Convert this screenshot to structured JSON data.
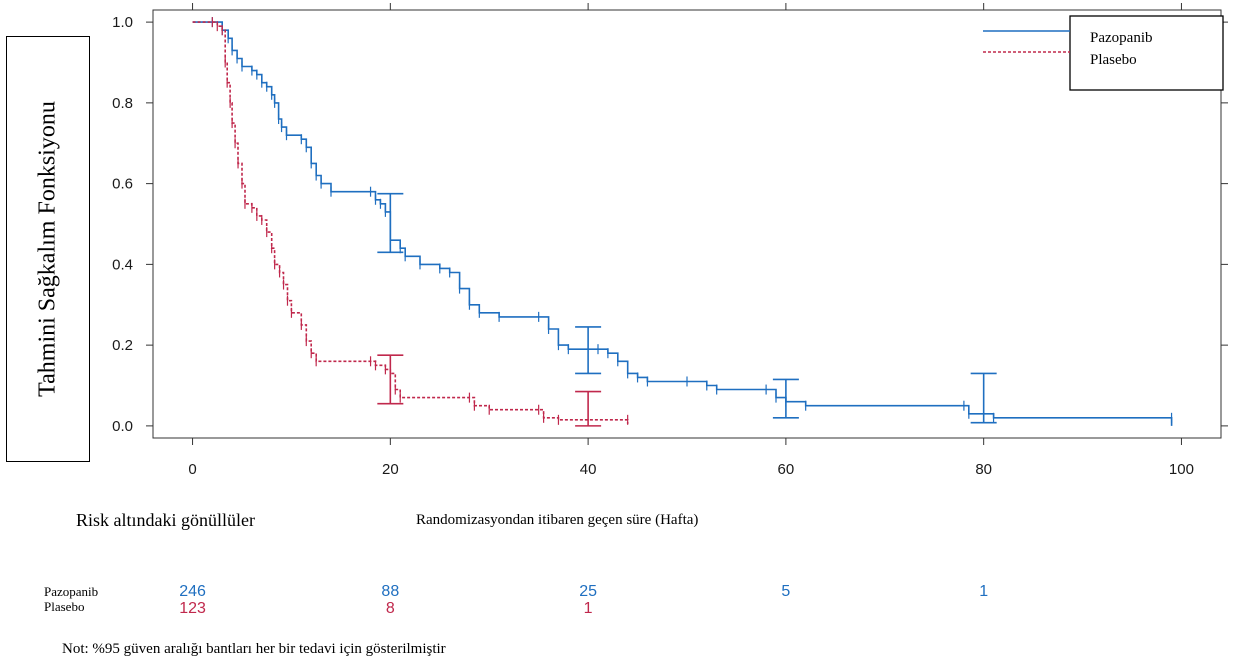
{
  "chart_data": {
    "type": "line",
    "title": "",
    "xlabel": "Randomizasyondan itibaren geçen süre (Hafta)",
    "ylabel": "Tahmini Sağkalım Fonksiyonu",
    "xlim": [
      -4,
      104
    ],
    "ylim": [
      -0.03,
      1.03
    ],
    "x_ticks": [
      0,
      20,
      40,
      60,
      80,
      100
    ],
    "y_ticks": [
      "0.0",
      "0.2",
      "0.4",
      "0.6",
      "0.8",
      "1.0"
    ],
    "legend_position": "top-right",
    "series": [
      {
        "name": "Pazopanib",
        "color": "#1f6fc0",
        "dash": "solid",
        "points": [
          [
            0,
            1.0
          ],
          [
            2,
            1.0
          ],
          [
            3,
            0.98
          ],
          [
            3.6,
            0.96
          ],
          [
            4,
            0.93
          ],
          [
            4.5,
            0.91
          ],
          [
            5,
            0.89
          ],
          [
            6,
            0.88
          ],
          [
            6.5,
            0.87
          ],
          [
            7,
            0.85
          ],
          [
            7.5,
            0.84
          ],
          [
            8,
            0.82
          ],
          [
            8.3,
            0.8
          ],
          [
            8.7,
            0.76
          ],
          [
            9,
            0.74
          ],
          [
            9.5,
            0.72
          ],
          [
            11,
            0.71
          ],
          [
            11.5,
            0.69
          ],
          [
            12,
            0.65
          ],
          [
            12.5,
            0.62
          ],
          [
            13,
            0.6
          ],
          [
            14,
            0.58
          ],
          [
            18,
            0.58
          ],
          [
            18.5,
            0.56
          ],
          [
            19,
            0.55
          ],
          [
            19.5,
            0.53
          ],
          [
            20,
            0.46
          ],
          [
            21,
            0.44
          ],
          [
            21.5,
            0.42
          ],
          [
            23,
            0.4
          ],
          [
            25,
            0.39
          ],
          [
            26,
            0.38
          ],
          [
            27,
            0.34
          ],
          [
            28,
            0.3
          ],
          [
            29,
            0.28
          ],
          [
            31,
            0.27
          ],
          [
            35,
            0.27
          ],
          [
            36,
            0.24
          ],
          [
            37,
            0.2
          ],
          [
            38,
            0.19
          ],
          [
            41,
            0.19
          ],
          [
            42,
            0.18
          ],
          [
            43,
            0.16
          ],
          [
            44,
            0.13
          ],
          [
            45,
            0.12
          ],
          [
            46,
            0.11
          ],
          [
            50,
            0.11
          ],
          [
            52,
            0.1
          ],
          [
            53,
            0.09
          ],
          [
            58,
            0.09
          ],
          [
            59,
            0.07
          ],
          [
            60,
            0.06
          ],
          [
            62,
            0.05
          ],
          [
            78,
            0.05
          ],
          [
            78.5,
            0.03
          ],
          [
            81,
            0.02
          ],
          [
            99,
            0.02
          ],
          [
            99,
            0.0
          ]
        ],
        "ci_bars": [
          [
            20,
            0.43,
            0.575
          ],
          [
            40,
            0.13,
            0.245
          ],
          [
            60,
            0.02,
            0.115
          ],
          [
            80,
            0.008,
            0.13
          ]
        ]
      },
      {
        "name": "Plasebo",
        "color": "#c0284c",
        "dash": "dashed",
        "points": [
          [
            0,
            1.0
          ],
          [
            2,
            1.0
          ],
          [
            2.5,
            0.99
          ],
          [
            3,
            0.98
          ],
          [
            3.3,
            0.9
          ],
          [
            3.5,
            0.85
          ],
          [
            3.8,
            0.8
          ],
          [
            4,
            0.75
          ],
          [
            4.3,
            0.7
          ],
          [
            4.6,
            0.65
          ],
          [
            5,
            0.6
          ],
          [
            5.3,
            0.55
          ],
          [
            6,
            0.54
          ],
          [
            6.5,
            0.52
          ],
          [
            7,
            0.51
          ],
          [
            7.5,
            0.48
          ],
          [
            8,
            0.44
          ],
          [
            8.3,
            0.4
          ],
          [
            8.8,
            0.38
          ],
          [
            9.2,
            0.35
          ],
          [
            9.6,
            0.31
          ],
          [
            10,
            0.28
          ],
          [
            11,
            0.25
          ],
          [
            11.5,
            0.21
          ],
          [
            12,
            0.18
          ],
          [
            12.5,
            0.16
          ],
          [
            18,
            0.16
          ],
          [
            18.5,
            0.15
          ],
          [
            19.5,
            0.14
          ],
          [
            20,
            0.13
          ],
          [
            20.5,
            0.09
          ],
          [
            21,
            0.07
          ],
          [
            28,
            0.07
          ],
          [
            28.5,
            0.05
          ],
          [
            30,
            0.04
          ],
          [
            35,
            0.04
          ],
          [
            35.5,
            0.02
          ],
          [
            37,
            0.015
          ],
          [
            44,
            0.015
          ],
          [
            44,
            0.005
          ]
        ],
        "ci_bars": [
          [
            20,
            0.055,
            0.175
          ],
          [
            40,
            0.0,
            0.085
          ]
        ]
      }
    ],
    "risk_table": {
      "title": "Risk altındaki gönüllüler",
      "times": [
        0,
        20,
        40,
        60,
        80
      ],
      "rows": [
        {
          "name": "Pazopanib",
          "color": "#1f6fc0",
          "values": [
            "246",
            "88",
            "25",
            "5",
            "1"
          ]
        },
        {
          "name": "Plasebo",
          "color": "#c0284c",
          "values": [
            "123",
            "8",
            "1",
            "",
            ""
          ]
        }
      ]
    },
    "note": "Not: %95 güven aralığı bantları her bir tedavi için gösterilmiştir"
  }
}
